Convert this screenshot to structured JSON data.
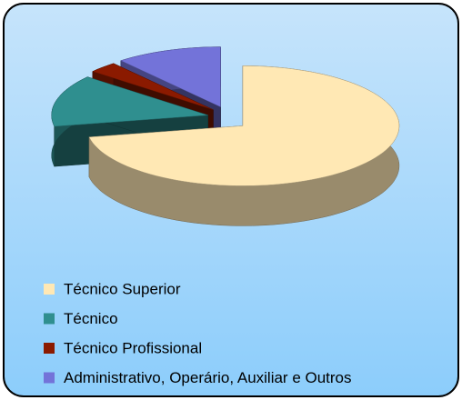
{
  "chart_data": {
    "type": "pie",
    "categories": [
      "Técnico Superior",
      "Técnico",
      "Técnico Profissional",
      "Administrativo, Operário, Auxiliar e Outros"
    ],
    "values": [
      72,
      14,
      3,
      11
    ],
    "colors": [
      "#ffe8b4",
      "#2f8f8f",
      "#8b1a00",
      "#7373d9"
    ],
    "legend": "bottom"
  }
}
